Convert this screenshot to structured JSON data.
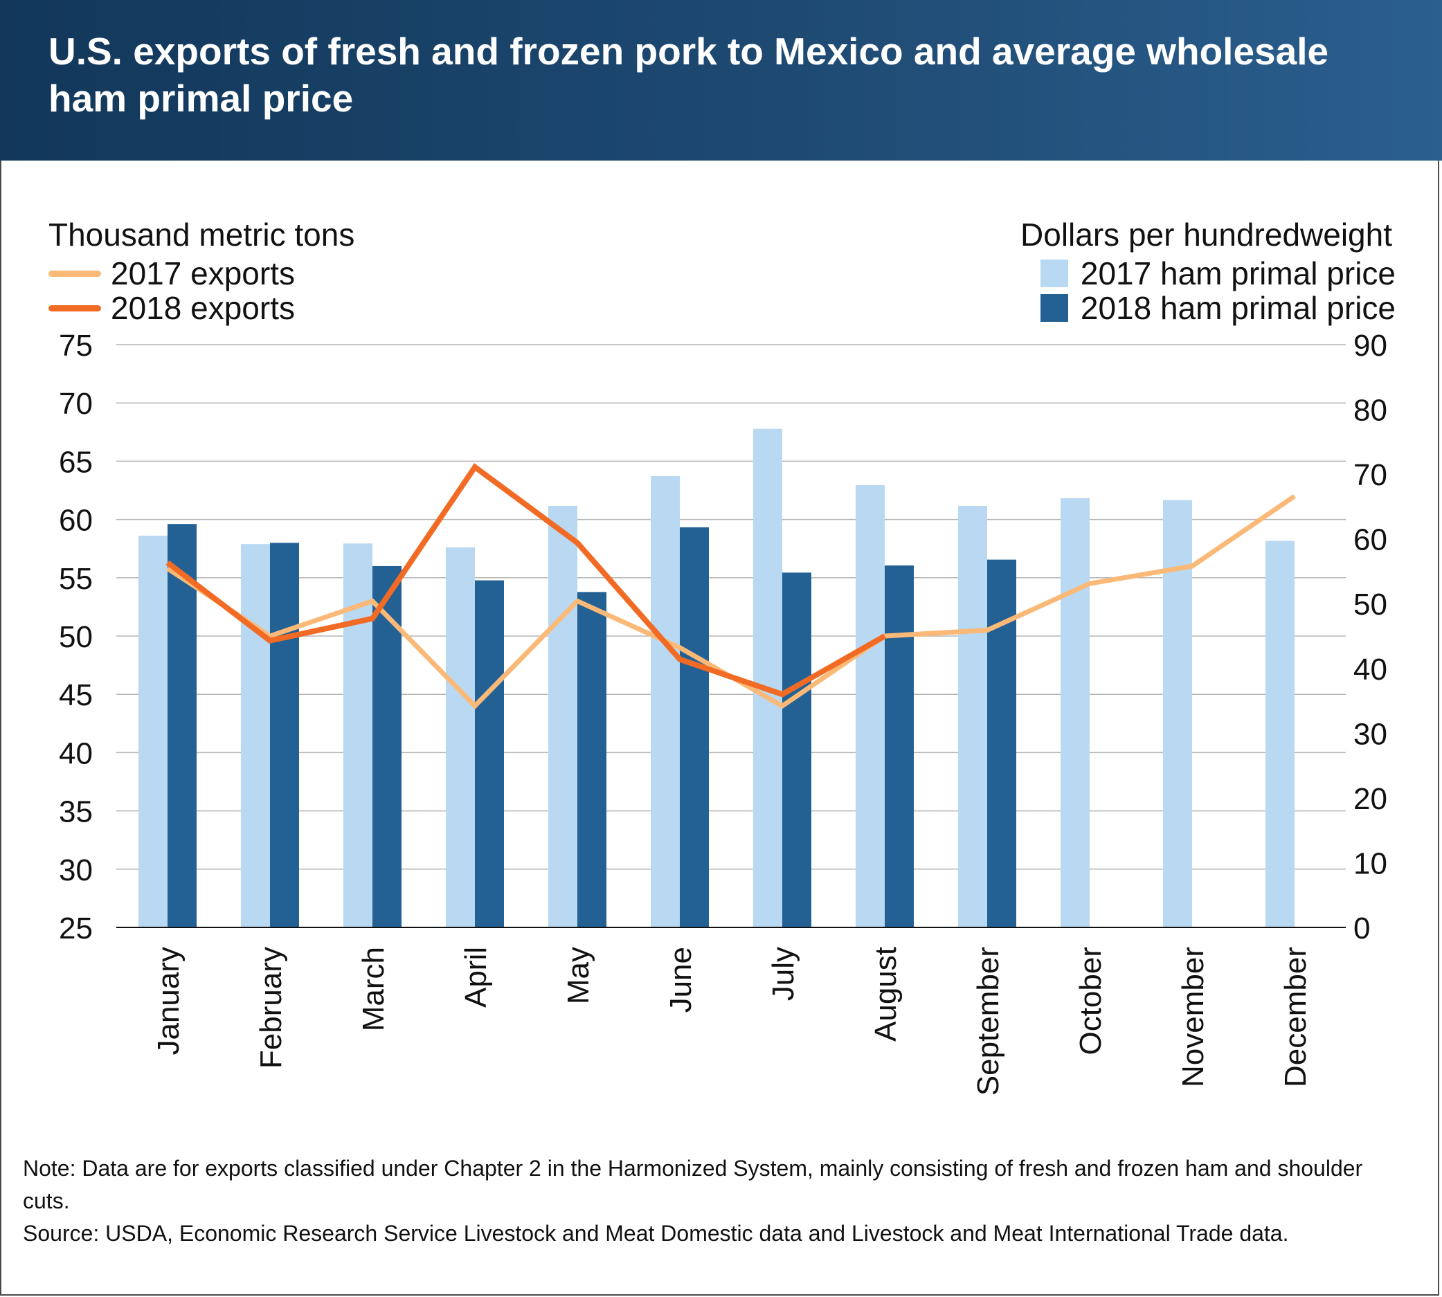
{
  "title": "U.S. exports of fresh and frozen pork to Mexico and average wholesale ham primal price",
  "legend": {
    "left_axis_title": "Thousand metric tons",
    "right_axis_title": "Dollars per hundredweight",
    "exports_2017": "2017 exports",
    "exports_2018": "2018 exports",
    "price_2017": "2017 ham primal price",
    "price_2018": "2018 ham primal price"
  },
  "colors": {
    "exports_2017": "#fbb978",
    "exports_2018": "#f26b25",
    "price_2017": "#b9d8f2",
    "price_2018": "#236195",
    "grid": "#b5b5b5"
  },
  "note": {
    "line1": "Note: Data are for exports classified under Chapter 2 in the Harmonized System, mainly consisting of fresh and frozen ham and shoulder cuts.",
    "line2": "Source: USDA, Economic Research Service Livestock and Meat Domestic data and Livestock and Meat International Trade data."
  },
  "chart_data": {
    "type": "bar",
    "categories": [
      "January",
      "February",
      "March",
      "April",
      "May",
      "June",
      "July",
      "August",
      "September",
      "October",
      "November",
      "December"
    ],
    "y_left": {
      "label": "Thousand metric tons",
      "lim": [
        25,
        75
      ],
      "ticks": [
        25,
        30,
        35,
        40,
        45,
        50,
        55,
        60,
        65,
        70,
        75
      ]
    },
    "y_right": {
      "label": "Dollars per hundredweight",
      "lim": [
        0,
        90
      ],
      "ticks": [
        0,
        10,
        20,
        30,
        40,
        50,
        60,
        70,
        80,
        90
      ]
    },
    "grid": true,
    "legend_position": "top",
    "series": [
      {
        "name": "2017 ham primal price",
        "type": "bar",
        "axis": "right",
        "values": [
          60.5,
          59.2,
          59.3,
          58.7,
          65.1,
          69.7,
          77.0,
          68.3,
          65.1,
          66.3,
          66.0,
          59.7
        ]
      },
      {
        "name": "2018 ham primal price",
        "type": "bar",
        "axis": "right",
        "values": [
          62.3,
          59.4,
          55.8,
          53.6,
          51.8,
          61.8,
          54.8,
          55.9,
          56.8,
          null,
          null,
          null
        ]
      },
      {
        "name": "2017 exports",
        "type": "line",
        "axis": "left",
        "values": [
          55.8,
          50.0,
          53.0,
          44.0,
          53.0,
          49.0,
          44.0,
          50.0,
          50.5,
          54.5,
          56.0,
          62.0
        ]
      },
      {
        "name": "2018 exports",
        "type": "line",
        "axis": "left",
        "values": [
          56.3,
          49.6,
          51.5,
          64.5,
          58.0,
          48.0,
          45.0,
          50.0,
          null,
          null,
          null,
          null
        ]
      }
    ]
  }
}
